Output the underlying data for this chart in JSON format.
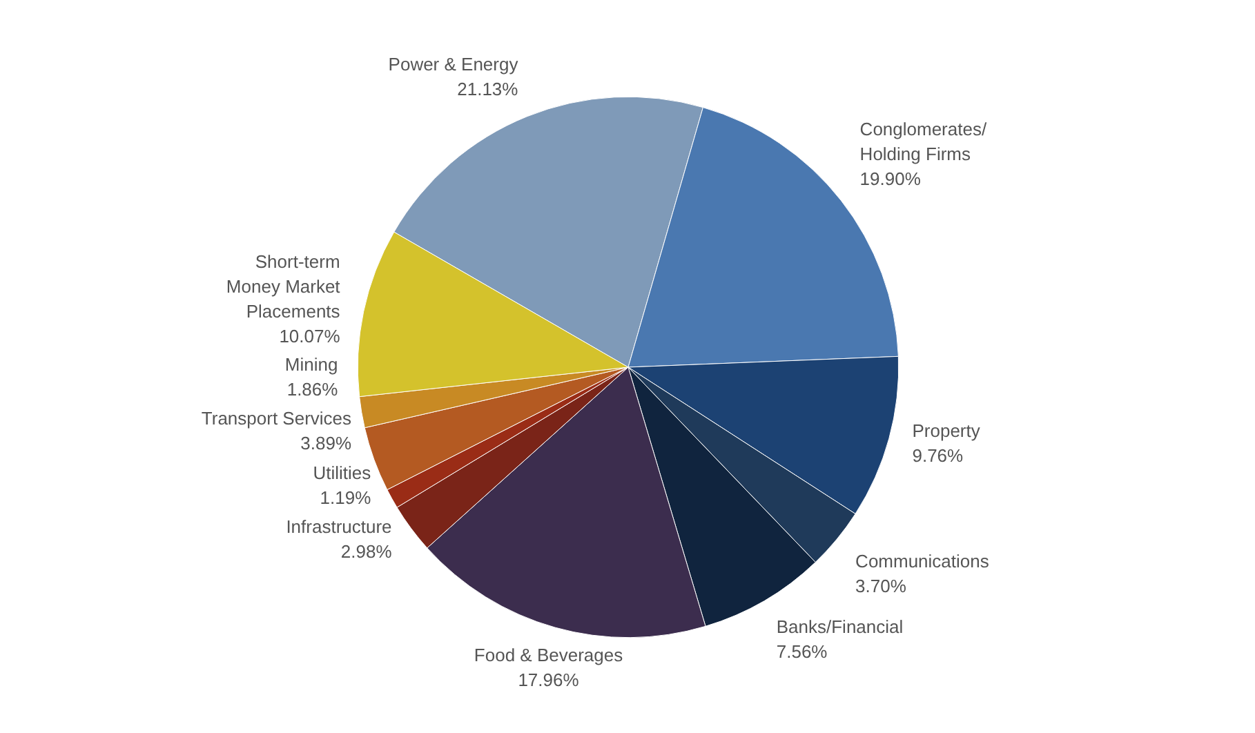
{
  "chart_data": {
    "type": "pie",
    "data_labels": true,
    "categories": [
      "Power & Energy",
      "Conglomerates/\nHolding Firms",
      "Property",
      "Communications",
      "Banks/Financial",
      "Food & Beverages",
      "Infrastructure",
      "Utilities",
      "Transport Services",
      "Mining",
      "Short-term\nMoney Market\nPlacements"
    ],
    "values": [
      21.13,
      19.9,
      9.76,
      3.7,
      7.56,
      17.96,
      2.98,
      1.19,
      3.89,
      1.86,
      10.07
    ],
    "value_labels": [
      "21.13%",
      "19.90%",
      "9.76%",
      "3.70%",
      "7.56%",
      "17.96%",
      "2.98%",
      "1.19%",
      "3.89%",
      "1.86%",
      "10.07%"
    ],
    "colors": [
      "#7f9ab8",
      "#4a78b0",
      "#1c4273",
      "#1f3a5a",
      "#10243e",
      "#3c2d4e",
      "#7a2418",
      "#9a2c16",
      "#b45a22",
      "#c88a24",
      "#d4c22c"
    ]
  }
}
